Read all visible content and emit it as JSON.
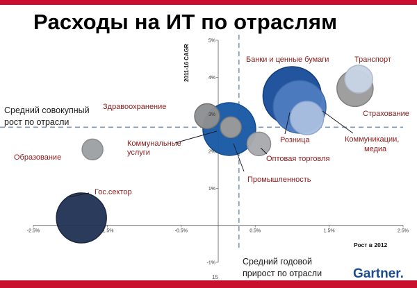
{
  "title": "Расходы на ИТ по отраслям",
  "page_number": "15",
  "logo": "Gartner.",
  "colors": {
    "brand_red": "#c8102e",
    "dark_navy": "#243556",
    "blue": "#1f5fa8",
    "grey": "#9a9a9a"
  },
  "notes": {
    "avg_cagr_line1": "Средний совокупный",
    "avg_cagr_line2": "рост по отрасли",
    "avg_growth_line1": "Средний годовой",
    "avg_growth_line2": "прирост по отрасли"
  },
  "chart_data": {
    "type": "scatter",
    "title": "",
    "xlabel": "Рост в 2012",
    "ylabel": "2011-16 CAGR",
    "xlim": [
      -2.5,
      2.5
    ],
    "ylim": [
      -1,
      5
    ],
    "x_ticks": [
      "-2.5%",
      "-1.5%",
      "-0.5%",
      "0.5%",
      "1.5%",
      "2.5%"
    ],
    "y_ticks": [
      "-1%",
      "1%",
      "2%",
      "3%",
      "4%",
      "5%"
    ],
    "avg_x": 0.28,
    "avg_y": 2.65,
    "points": [
      {
        "name": "Гос.сектор",
        "x": -1.85,
        "y": 0.2,
        "size": 36,
        "color": "#243556",
        "edge": "#1a2840"
      },
      {
        "name": "Образование",
        "x": -1.7,
        "y": 2.05,
        "size": 15,
        "color": "#9ea1a4",
        "edge": "#8a8d90"
      },
      {
        "name": "Здравоохранение",
        "x": -0.15,
        "y": 2.95,
        "size": 18,
        "color": "#8d8f91",
        "edge": "#707274"
      },
      {
        "name": "Промышленность",
        "x": 0.15,
        "y": 2.6,
        "size": 38,
        "color": "#1a5aa6",
        "edge": "#114a8d"
      },
      {
        "name": "Коммунальные услуги",
        "x": 0.17,
        "y": 2.65,
        "size": 15,
        "color": "#9a9a9a",
        "edge": "#7d7d7d"
      },
      {
        "name": "Оптовая торговля",
        "x": 0.55,
        "y": 2.2,
        "size": 17,
        "color": "#a8aaad",
        "edge": "#8c8e91"
      },
      {
        "name": "Банки и ценные бумаги",
        "x": 1.0,
        "y": 3.5,
        "size": 42,
        "color": "#1b4f9a",
        "edge": "#123c77"
      },
      {
        "name": "Розница",
        "x": 1.1,
        "y": 3.2,
        "size": 38,
        "color": "#4c7cc0",
        "edge": "#3b68a8"
      },
      {
        "name": "Коммуникации, медиа",
        "x": 1.2,
        "y": 2.9,
        "size": 24,
        "color": "#a9bee0",
        "edge": "#8ea7d0"
      },
      {
        "name": "Транспорт",
        "x": 1.9,
        "y": 3.95,
        "size": 20,
        "color": "#c7d3e3",
        "edge": "#aebbcc"
      },
      {
        "name": "Страхование",
        "x": 1.85,
        "y": 3.7,
        "size": 26,
        "color": "#9c9c9c",
        "edge": "#7f7f7f"
      }
    ]
  }
}
